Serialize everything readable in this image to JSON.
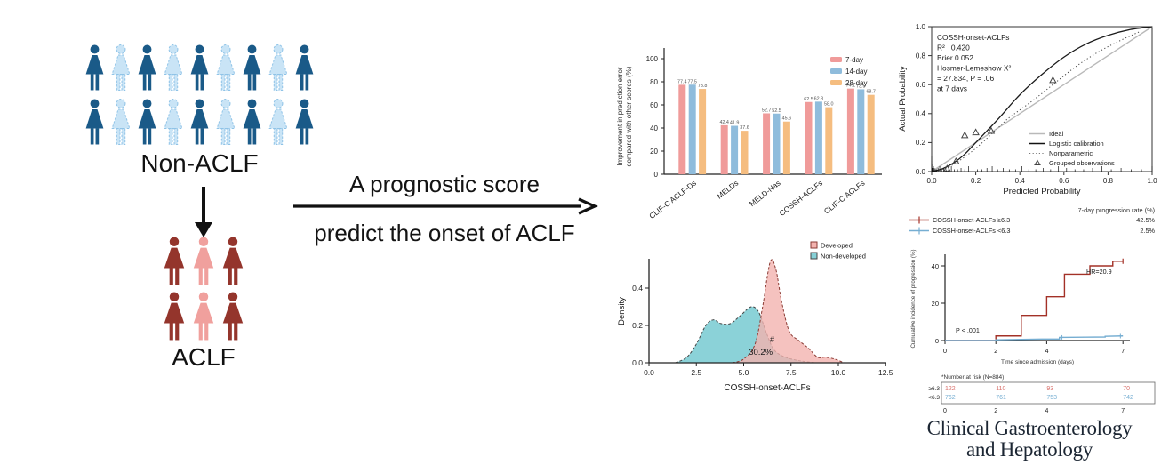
{
  "flow": {
    "non_aclf": {
      "label": "Non-ACLF",
      "rows": 2,
      "cols": 9,
      "pattern": [
        "dark",
        "light",
        "dark",
        "light",
        "dark",
        "light",
        "dark",
        "light",
        "dark"
      ],
      "dark": "#1a5a88",
      "light": "#c9e4f6",
      "light_stroke": "#8fc3e7",
      "light_dashed": true
    },
    "aclf": {
      "label": "ACLF",
      "rows": 2,
      "cols": 3,
      "pattern": [
        "dark",
        "light",
        "dark"
      ],
      "dark": "#94352c",
      "light": "#f0a09d",
      "light_stroke": "#e08b88",
      "light_dashed": false
    },
    "arrow_text_top": "A prognostic score",
    "arrow_text_bottom": "predict the onset of ACLF"
  },
  "icons": {
    "person": "person-silhouette",
    "down_arrow": "arrow-down",
    "right_arrow": "arrow-right"
  },
  "journal": {
    "line1": "Clinical Gastroenterology",
    "line2": "and Hepatology",
    "color": "#1c2633"
  },
  "chart_data": [
    {
      "id": "improvement-bar-chart",
      "type": "bar",
      "ylabel_lines": [
        "Improvement in prediction error",
        "compared with other scores (%)"
      ],
      "ylim": [
        0,
        100
      ],
      "yticks": [
        0,
        20,
        40,
        60,
        80,
        100
      ],
      "categories": [
        "CLIF-C ACLF-Ds",
        "MELDs",
        "MELD-Nas",
        "COSSH-ACLFs",
        "CLIF-C ACLFs"
      ],
      "legend_position": "top-right",
      "series": [
        {
          "name": "7-day",
          "color": "#f09b9a",
          "values": [
            77.4,
            42.4,
            52.7,
            62.5,
            74.1
          ],
          "labels": [
            "77.4",
            "42.4",
            "52.7",
            "62.5",
            "74.1"
          ]
        },
        {
          "name": "14-day",
          "color": "#8fbcdc",
          "values": [
            77.5,
            41.9,
            52.5,
            62.8,
            73.5
          ],
          "labels": [
            "77.5",
            "41.9",
            "52.5",
            "62.8",
            "73.5"
          ]
        },
        {
          "name": "28-day",
          "color": "#f5bd80",
          "values": [
            73.8,
            37.6,
            45.6,
            58.0,
            68.7
          ],
          "labels": [
            "73.8",
            "37.6",
            "45.6",
            "58.0",
            "68.7"
          ]
        }
      ]
    },
    {
      "id": "calibration-plot",
      "type": "line",
      "stats_lines": [
        "COSSH-onset-ACLFs",
        "R²   0.420",
        "Brier 0.052",
        "Hosmer-Lemeshow X²",
        "= 27.834, P = .06",
        "at 7 days"
      ],
      "xlabel": "Predicted Probability",
      "ylabel": "Actual Probability",
      "xlim": [
        0,
        1
      ],
      "ylim": [
        0,
        1
      ],
      "xticks": [
        "0.0",
        "0.2",
        "0.4",
        "0.6",
        "0.8",
        "1.0"
      ],
      "yticks": [
        "0.0",
        "0.2",
        "0.4",
        "0.6",
        "0.8",
        "1.0"
      ],
      "legend": [
        {
          "label": "Ideal",
          "style": "gray-line"
        },
        {
          "label": "Logistic calibration",
          "style": "black-line"
        },
        {
          "label": "Nonparametric",
          "style": "dotted-line"
        },
        {
          "label": "Grouped observations",
          "style": "triangle"
        }
      ],
      "series": [
        {
          "name": "Ideal",
          "color": "#b9b9b9",
          "points": [
            [
              0,
              0
            ],
            [
              1,
              1
            ]
          ]
        },
        {
          "name": "Logistic calibration",
          "color": "#1a1a1a",
          "points": [
            [
              0,
              0
            ],
            [
              0.05,
              0.02
            ],
            [
              0.1,
              0.06
            ],
            [
              0.15,
              0.12
            ],
            [
              0.2,
              0.2
            ],
            [
              0.3,
              0.36
            ],
            [
              0.4,
              0.53
            ],
            [
              0.5,
              0.67
            ],
            [
              0.6,
              0.79
            ],
            [
              0.7,
              0.88
            ],
            [
              0.8,
              0.94
            ],
            [
              0.9,
              0.98
            ],
            [
              1,
              1
            ]
          ]
        },
        {
          "name": "Nonparametric",
          "color": "#444444",
          "points": [
            [
              0.02,
              0
            ],
            [
              0.1,
              0.05
            ],
            [
              0.2,
              0.16
            ],
            [
              0.3,
              0.3
            ],
            [
              0.35,
              0.37
            ],
            [
              0.45,
              0.48
            ],
            [
              0.55,
              0.6
            ],
            [
              0.65,
              0.72
            ],
            [
              0.75,
              0.82
            ],
            [
              0.85,
              0.9
            ],
            [
              0.95,
              0.97
            ]
          ]
        },
        {
          "name": "Grouped observations",
          "color": "#555555",
          "points": [
            [
              0.07,
              0.02
            ],
            [
              0.11,
              0.07
            ],
            [
              0.15,
              0.25
            ],
            [
              0.2,
              0.27
            ],
            [
              0.27,
              0.28
            ],
            [
              0.55,
              0.63
            ]
          ]
        }
      ]
    },
    {
      "id": "density-plot",
      "type": "area",
      "xlabel": "COSSH-onset-ACLFs",
      "ylabel": "Density",
      "xticks": [
        "0.0",
        "2.5",
        "5.0",
        "7.5",
        "10.0",
        "12.5"
      ],
      "yticks": [
        "0.0",
        "0.2",
        "0.4"
      ],
      "annotation": "30.2%",
      "annotation2": "#",
      "legend": [
        {
          "label": "Developed"
        },
        {
          "label": "Non-developed"
        }
      ],
      "series": [
        {
          "name": "Non-developed",
          "fill": "#85d0d6",
          "stroke": "#444444",
          "opacity": 0.95,
          "points": [
            [
              1.4,
              0
            ],
            [
              2,
              0.03
            ],
            [
              2.5,
              0.1
            ],
            [
              3,
              0.2
            ],
            [
              3.4,
              0.23
            ],
            [
              3.8,
              0.21
            ],
            [
              4.3,
              0.21
            ],
            [
              4.8,
              0.25
            ],
            [
              5.4,
              0.3
            ],
            [
              5.8,
              0.27
            ],
            [
              6.2,
              0.16
            ],
            [
              6.6,
              0.07
            ],
            [
              7.2,
              0.03
            ],
            [
              8,
              0.01
            ],
            [
              8.8,
              0
            ]
          ]
        },
        {
          "name": "Developed",
          "fill": "#f3b3af",
          "stroke": "#8a3a33",
          "opacity": 0.8,
          "points": [
            [
              4.4,
              0
            ],
            [
              5,
              0.02
            ],
            [
              5.6,
              0.1
            ],
            [
              6,
              0.3
            ],
            [
              6.4,
              0.54
            ],
            [
              6.7,
              0.5
            ],
            [
              7,
              0.33
            ],
            [
              7.4,
              0.17
            ],
            [
              7.9,
              0.12
            ],
            [
              8.4,
              0.08
            ],
            [
              8.9,
              0.03
            ],
            [
              9.3,
              0.03
            ],
            [
              9.8,
              0.02
            ],
            [
              10.3,
              0
            ]
          ]
        }
      ]
    },
    {
      "id": "cumulative-incidence-plot",
      "type": "line",
      "header": "7-day progression rate (%)",
      "groups": [
        {
          "label": "COSSH-onset-ACLFs ≥6.3",
          "rate": "42.5%",
          "color": "#a33127"
        },
        {
          "label": "COSSH-onset-ACLFs <6.3",
          "rate": "2.5%",
          "color": "#76aed2"
        }
      ],
      "ylabel": "Cumulative incidence of progression (%)",
      "xlabel": "Time since admission (days)",
      "yticks": [
        0,
        20,
        40
      ],
      "xticks": [
        0,
        2,
        4,
        7
      ],
      "hr_text": "HR=20.9",
      "p_text": "P < .001",
      "series": [
        {
          "name": "≥6.3",
          "color": "#a33127",
          "steps": [
            [
              0,
              0
            ],
            [
              2,
              0
            ],
            [
              2,
              2.5
            ],
            [
              3,
              2.5
            ],
            [
              3,
              13.5
            ],
            [
              4,
              13.5
            ],
            [
              4,
              23.5
            ],
            [
              4.7,
              23.5
            ],
            [
              4.7,
              35.5
            ],
            [
              5.7,
              35.5
            ],
            [
              5.7,
              40
            ],
            [
              6.6,
              40
            ],
            [
              6.6,
              42.5
            ],
            [
              7,
              42.5
            ]
          ]
        },
        {
          "name": "<6.3",
          "color": "#76aed2",
          "steps": [
            [
              0,
              0
            ],
            [
              2,
              0
            ],
            [
              2,
              0.4
            ],
            [
              3,
              0.6
            ],
            [
              3.8,
              0.8
            ],
            [
              4.5,
              0.8
            ],
            [
              4.5,
              1.7
            ],
            [
              5.5,
              1.8
            ],
            [
              6.3,
              1.9
            ],
            [
              6.3,
              2.3
            ],
            [
              7,
              2.5
            ]
          ],
          "censors": [
            [
              4.6,
              1.7
            ],
            [
              6.9,
              2.4
            ]
          ]
        }
      ],
      "risk_table": {
        "title": "*Number at risk (N=884)",
        "rows": [
          {
            "label": "≥6.3",
            "color": "#d9706b",
            "values": [
              "122",
              "110",
              "93",
              "70"
            ]
          },
          {
            "label": "<6.3",
            "color": "#76aed2",
            "values": [
              "762",
              "761",
              "753",
              "742"
            ]
          }
        ],
        "axis": [
          "0",
          "2",
          "4",
          "7"
        ]
      }
    }
  ]
}
